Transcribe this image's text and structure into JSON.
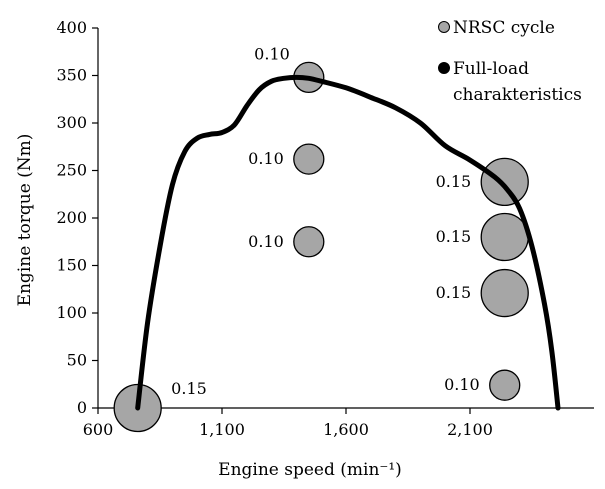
{
  "chart_data": {
    "type": "scatter",
    "xlabel": "Engine speed (min⁻¹)",
    "ylabel": "Engine torque (Nm)",
    "xlim": [
      600,
      2600
    ],
    "ylim": [
      0,
      400
    ],
    "x_ticks": [
      600,
      1100,
      1600,
      2100
    ],
    "x_tick_labels": [
      "600",
      "1,100",
      "1,600",
      "2,100"
    ],
    "y_ticks": [
      0,
      50,
      100,
      150,
      200,
      250,
      300,
      350,
      400
    ],
    "y_tick_labels": [
      "0",
      "50",
      "100",
      "150",
      "200",
      "250",
      "300",
      "350",
      "400"
    ],
    "grid": false,
    "legend_position": "top-right",
    "colors": {
      "bubble_fill": "#a6a6a6",
      "bubble_stroke": "#000000",
      "curve": "#000000"
    },
    "series": [
      {
        "name": "NRSC cycle",
        "type": "bubble",
        "points": [
          {
            "x": 760,
            "y": 0,
            "weight": "0.15"
          },
          {
            "x": 1450,
            "y": 348,
            "weight": "0.10"
          },
          {
            "x": 1450,
            "y": 262,
            "weight": "0.10"
          },
          {
            "x": 1450,
            "y": 175,
            "weight": "0.10"
          },
          {
            "x": 2240,
            "y": 238,
            "weight": "0.15"
          },
          {
            "x": 2240,
            "y": 180,
            "weight": "0.15"
          },
          {
            "x": 2240,
            "y": 121,
            "weight": "0.15"
          },
          {
            "x": 2240,
            "y": 24,
            "weight": "0.10"
          }
        ]
      },
      {
        "name": "Full-load charakteristics",
        "legend_lines": [
          "Full-load",
          "charakteristics"
        ],
        "type": "line",
        "points": [
          {
            "x": 760,
            "y": 0
          },
          {
            "x": 800,
            "y": 90
          },
          {
            "x": 850,
            "y": 170
          },
          {
            "x": 900,
            "y": 235
          },
          {
            "x": 950,
            "y": 270
          },
          {
            "x": 1000,
            "y": 284
          },
          {
            "x": 1050,
            "y": 288
          },
          {
            "x": 1100,
            "y": 290
          },
          {
            "x": 1150,
            "y": 298
          },
          {
            "x": 1200,
            "y": 318
          },
          {
            "x": 1250,
            "y": 335
          },
          {
            "x": 1300,
            "y": 344
          },
          {
            "x": 1350,
            "y": 347
          },
          {
            "x": 1400,
            "y": 348
          },
          {
            "x": 1450,
            "y": 347
          },
          {
            "x": 1500,
            "y": 344
          },
          {
            "x": 1600,
            "y": 337
          },
          {
            "x": 1700,
            "y": 327
          },
          {
            "x": 1800,
            "y": 316
          },
          {
            "x": 1900,
            "y": 300
          },
          {
            "x": 2000,
            "y": 276
          },
          {
            "x": 2100,
            "y": 261
          },
          {
            "x": 2200,
            "y": 243
          },
          {
            "x": 2250,
            "y": 230
          },
          {
            "x": 2300,
            "y": 210
          },
          {
            "x": 2350,
            "y": 170
          },
          {
            "x": 2400,
            "y": 110
          },
          {
            "x": 2430,
            "y": 60
          },
          {
            "x": 2455,
            "y": 0
          }
        ]
      }
    ]
  }
}
